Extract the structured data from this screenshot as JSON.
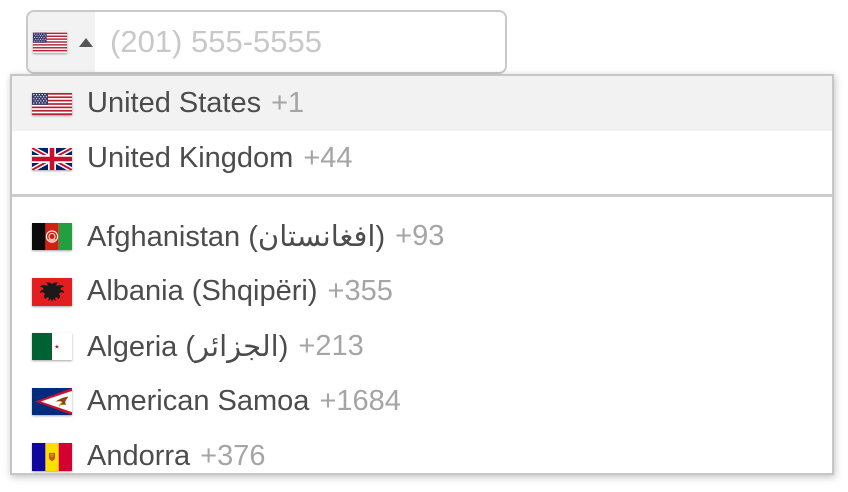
{
  "phone_input": {
    "placeholder": "(201) 555-5555",
    "selected_country_flag": "us",
    "dropdown_state": "open"
  },
  "dropdown": {
    "preferred": [
      {
        "name": "United States",
        "dial_code": "+1",
        "flag": "us",
        "highlighted": true
      },
      {
        "name": "United Kingdom",
        "dial_code": "+44",
        "flag": "gb",
        "highlighted": false
      }
    ],
    "countries": [
      {
        "name": "Afghanistan (افغانستان)",
        "dial_code": "+93",
        "flag": "af",
        "highlighted": false
      },
      {
        "name": "Albania (Shqipëri)",
        "dial_code": "+355",
        "flag": "al",
        "highlighted": false
      },
      {
        "name": "Algeria (الجزائر)",
        "dial_code": "+213",
        "flag": "dz",
        "highlighted": false
      },
      {
        "name": "American Samoa",
        "dial_code": "+1684",
        "flag": "as",
        "highlighted": false
      },
      {
        "name": "Andorra",
        "dial_code": "+376",
        "flag": "ad",
        "highlighted": false
      }
    ]
  },
  "colors": {
    "highlight_row": "#f2f2f2",
    "border": "#c9c9c9",
    "country_name": "#4c4c4c",
    "dial_code": "#a5a5a5",
    "placeholder": "#c8c8c8",
    "divider": "#cccccc"
  }
}
